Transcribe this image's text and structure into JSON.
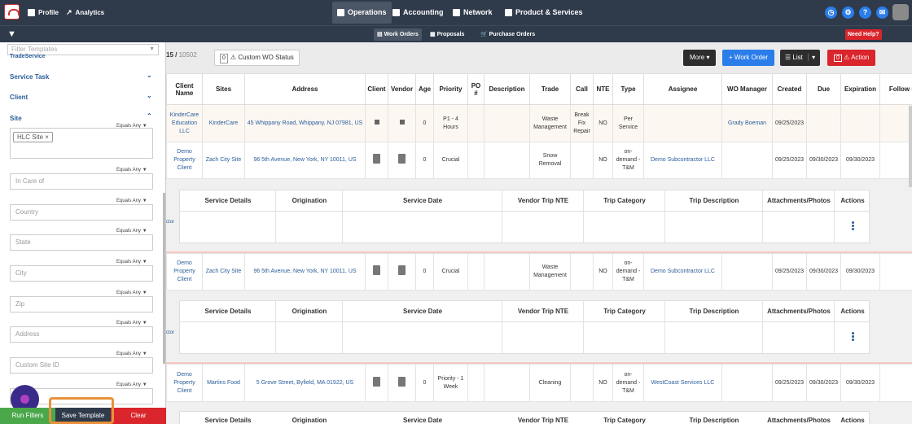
{
  "topnav": {
    "profile": "Profile",
    "analytics": "Analytics",
    "operations": "Operations",
    "accounting": "Accounting",
    "network": "Network",
    "products": "Product & Services"
  },
  "subnav": {
    "work_orders": "Work Orders",
    "proposals": "Proposals",
    "purchase_orders": "Purchase Orders",
    "help": "Need Help?"
  },
  "sidebar": {
    "template_placeholder": "Filter Templates",
    "partial_top": "TradeService",
    "sections": [
      "Service Task",
      "Client",
      "Site"
    ],
    "equals_any": "Equals Any",
    "site_tag": "HLC Site",
    "fields": [
      "In Care of",
      "Country",
      "State",
      "City",
      "Zip",
      "Address",
      "Custom Site ID"
    ],
    "buttons": {
      "run": "Run Filters",
      "save": "Save Template",
      "clear": "Clear"
    }
  },
  "toolbar": {
    "count_prefix": "15",
    "count_total": "10502",
    "status_count": "0",
    "custom_status": "Custom WO Status",
    "more": "More",
    "work_order": "Work Order",
    "list": "List",
    "action_count": "0",
    "action": "Action"
  },
  "table": {
    "headers": [
      "Client Name",
      "Sites",
      "Address",
      "Client",
      "Vendor",
      "Age",
      "Priority",
      "PO #",
      "Description",
      "Trade",
      "Call",
      "NTE",
      "Type",
      "Assignee",
      "WO Manager",
      "Created",
      "Due",
      "Expiration",
      "Follow up"
    ],
    "rows": [
      {
        "client": "KinderCare Education LLC",
        "site": "KinderCare",
        "address": "45 Whippany Road, Whippany, NJ 07981, US",
        "age": "0",
        "priority": "P1 - 4 Hours",
        "trade": "Waste Management",
        "call": "Break Fix Repair",
        "nte": "NO",
        "type": "Per Service",
        "assignee": "",
        "manager": "Grady Boeman",
        "created": "09/25/2023",
        "due": "",
        "exp": ""
      },
      {
        "client": "Demo Property Client",
        "site": "Zach City Site",
        "address": "96 5th Avenue, New York, NY 10011, US",
        "age": "0",
        "priority": "Crucial",
        "trade": "Snow Removal",
        "call": "",
        "nte": "NO",
        "type": "on-demand - T&M",
        "assignee": "Demo Subcontractor LLC",
        "manager": "",
        "created": "09/25/2023",
        "due": "09/30/2023",
        "exp": "09/30/2023"
      },
      {
        "client": "Demo Property Client",
        "site": "Zach City Site",
        "address": "96 5th Avenue, New York, NY 10011, US",
        "age": "0",
        "priority": "Crucial",
        "trade": "Waste Management",
        "call": "",
        "nte": "NO",
        "type": "on-demand - T&M",
        "assignee": "Demo Subcontractor LLC",
        "manager": "",
        "created": "09/25/2023",
        "due": "09/30/2023",
        "exp": "09/30/2023"
      },
      {
        "client": "Demo Property Client",
        "site": "Martins Food",
        "address": "5 Grove Street, Byfield, MA 01922, US",
        "age": "0",
        "priority": "Priority - 1 Week",
        "trade": "Cleaning",
        "call": "",
        "nte": "NO",
        "type": "on-demand - T&M",
        "assignee": "WestCoast Services LLC",
        "manager": "",
        "created": "09/25/2023",
        "due": "09/30/2023",
        "exp": "09/30/2023"
      }
    ],
    "sub_headers": [
      "Service Details",
      "Origination",
      "Service Date",
      "Vendor Trip NTE",
      "Trip Category",
      "Trip Description",
      "Attachments/Photos",
      "Actions"
    ],
    "sub_left": "ctor"
  }
}
